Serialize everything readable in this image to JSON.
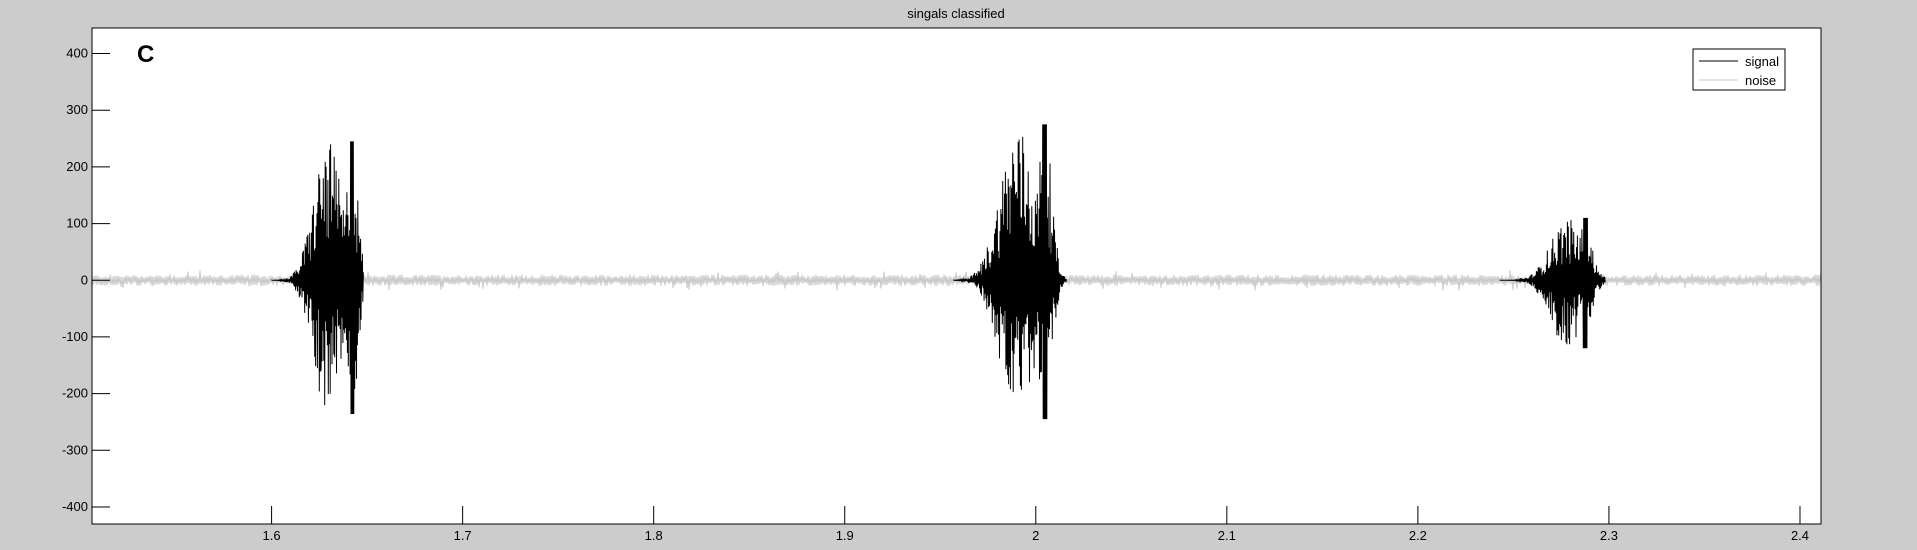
{
  "chart_data": {
    "type": "line",
    "title": "singals classified",
    "panel_label": "C",
    "xlabel": "",
    "ylabel": "",
    "xlim": [
      1.506,
      2.411
    ],
    "ylim": [
      -430,
      445
    ],
    "x_ticks": [
      1.6,
      1.7,
      1.8,
      1.9,
      2.0,
      2.1,
      2.2,
      2.3,
      2.4
    ],
    "x_tick_labels": [
      "1.6",
      "1.7",
      "1.8",
      "1.9",
      "2",
      "2.1",
      "2.2",
      "2.3",
      "2.4"
    ],
    "y_ticks": [
      400,
      300,
      200,
      100,
      0,
      -100,
      -200,
      -300,
      -400
    ],
    "y_tick_labels": [
      "400",
      "300",
      "200",
      "100",
      "0",
      "-100",
      "-200",
      "-300",
      "-400"
    ],
    "legend": {
      "position": "top-right"
    },
    "series": [
      {
        "name": "noise",
        "color": "#c8c8c8",
        "style": "continuous low-amplitude background",
        "x_range": [
          1.506,
          2.411
        ],
        "typical_amplitude": 10
      },
      {
        "name": "signal",
        "color": "#000000",
        "bursts": [
          {
            "x_start": 1.6,
            "x_end": 1.648,
            "max": 245,
            "min": -236
          },
          {
            "x_start": 1.957,
            "x_end": 2.016,
            "max": 275,
            "min": -245
          },
          {
            "x_start": 2.243,
            "x_end": 2.298,
            "max": 110,
            "min": -120
          }
        ]
      }
    ]
  }
}
